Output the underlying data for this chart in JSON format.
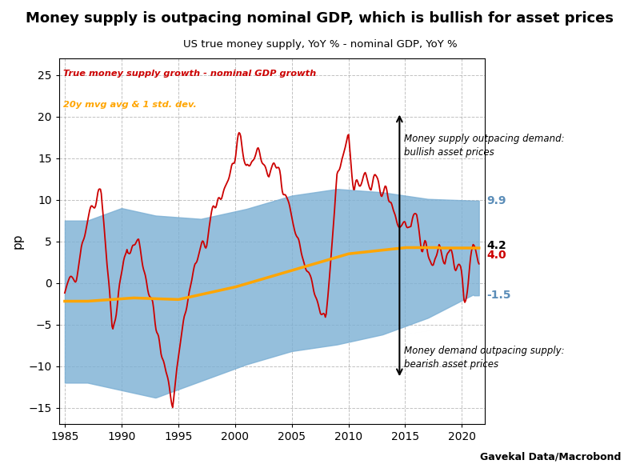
{
  "title": "Money supply is outpacing nominal GDP, which is bullish for asset prices",
  "subtitle": "US true money supply, YoY % - nominal GDP, YoY %",
  "ylabel": "pp",
  "xlabel_source": "Gavekal Data/Macrobond",
  "legend_line1": "True money supply growth - nominal GDP growth",
  "legend_line2": "20y mvg avg & 1 std. dev.",
  "annotation_top": "Money supply outpacing demand:\nbullish asset prices",
  "annotation_bottom": "Money demand outpacing supply:\nbearish asset prices",
  "label_99": "9.9",
  "label_42": "4.2",
  "label_40": "4.0",
  "label_neg15": "-1.5",
  "color_red": "#CC0000",
  "color_orange": "#FFA500",
  "color_blue_fill": "#7BAFD4",
  "ylim_min": -17,
  "ylim_max": 27,
  "yticks": [
    -15,
    -10,
    -5,
    0,
    5,
    10,
    15,
    20,
    25
  ],
  "xlim_min": 1984.5,
  "xlim_max": 2022.0,
  "xticks": [
    1985,
    1990,
    1995,
    2000,
    2005,
    2010,
    2015,
    2020
  ]
}
